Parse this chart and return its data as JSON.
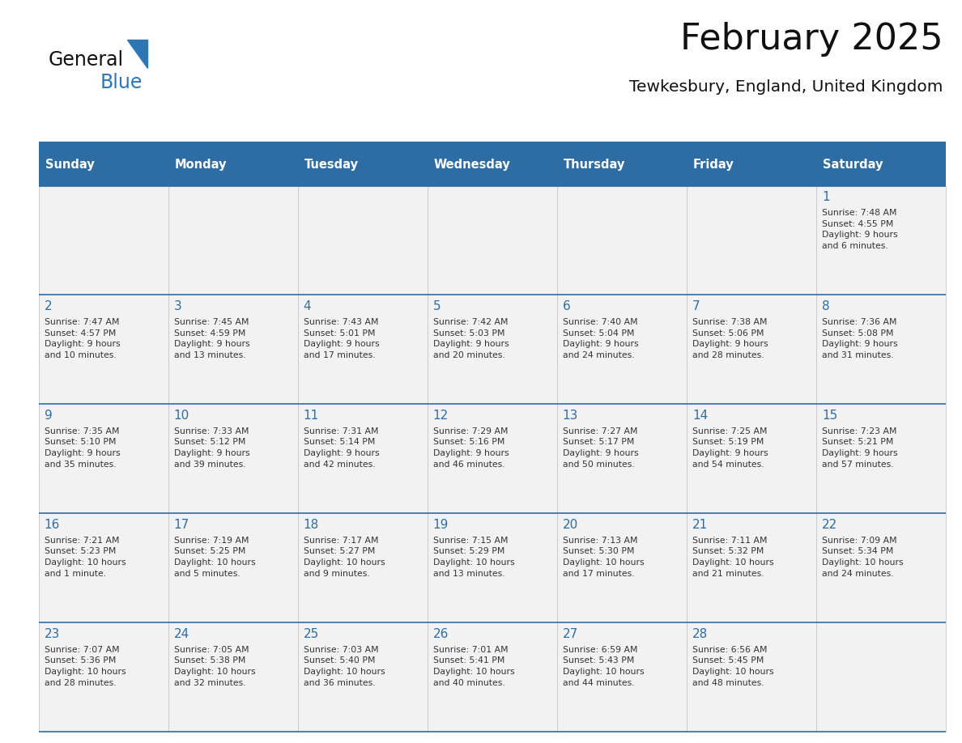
{
  "title": "February 2025",
  "subtitle": "Tewkesbury, England, United Kingdom",
  "header_color": "#2E6DA4",
  "header_text_color": "#FFFFFF",
  "day_names": [
    "Sunday",
    "Monday",
    "Tuesday",
    "Wednesday",
    "Thursday",
    "Friday",
    "Saturday"
  ],
  "background_color": "#FFFFFF",
  "cell_bg_color": "#F2F2F2",
  "grid_color": "#2E6DA4",
  "day_number_color": "#2E6DA4",
  "text_color": "#333333",
  "logo_color1": "#111111",
  "logo_color2": "#2E75B6",
  "weeks": [
    [
      {
        "day": null,
        "info": ""
      },
      {
        "day": null,
        "info": ""
      },
      {
        "day": null,
        "info": ""
      },
      {
        "day": null,
        "info": ""
      },
      {
        "day": null,
        "info": ""
      },
      {
        "day": null,
        "info": ""
      },
      {
        "day": 1,
        "info": "Sunrise: 7:48 AM\nSunset: 4:55 PM\nDaylight: 9 hours\nand 6 minutes."
      }
    ],
    [
      {
        "day": 2,
        "info": "Sunrise: 7:47 AM\nSunset: 4:57 PM\nDaylight: 9 hours\nand 10 minutes."
      },
      {
        "day": 3,
        "info": "Sunrise: 7:45 AM\nSunset: 4:59 PM\nDaylight: 9 hours\nand 13 minutes."
      },
      {
        "day": 4,
        "info": "Sunrise: 7:43 AM\nSunset: 5:01 PM\nDaylight: 9 hours\nand 17 minutes."
      },
      {
        "day": 5,
        "info": "Sunrise: 7:42 AM\nSunset: 5:03 PM\nDaylight: 9 hours\nand 20 minutes."
      },
      {
        "day": 6,
        "info": "Sunrise: 7:40 AM\nSunset: 5:04 PM\nDaylight: 9 hours\nand 24 minutes."
      },
      {
        "day": 7,
        "info": "Sunrise: 7:38 AM\nSunset: 5:06 PM\nDaylight: 9 hours\nand 28 minutes."
      },
      {
        "day": 8,
        "info": "Sunrise: 7:36 AM\nSunset: 5:08 PM\nDaylight: 9 hours\nand 31 minutes."
      }
    ],
    [
      {
        "day": 9,
        "info": "Sunrise: 7:35 AM\nSunset: 5:10 PM\nDaylight: 9 hours\nand 35 minutes."
      },
      {
        "day": 10,
        "info": "Sunrise: 7:33 AM\nSunset: 5:12 PM\nDaylight: 9 hours\nand 39 minutes."
      },
      {
        "day": 11,
        "info": "Sunrise: 7:31 AM\nSunset: 5:14 PM\nDaylight: 9 hours\nand 42 minutes."
      },
      {
        "day": 12,
        "info": "Sunrise: 7:29 AM\nSunset: 5:16 PM\nDaylight: 9 hours\nand 46 minutes."
      },
      {
        "day": 13,
        "info": "Sunrise: 7:27 AM\nSunset: 5:17 PM\nDaylight: 9 hours\nand 50 minutes."
      },
      {
        "day": 14,
        "info": "Sunrise: 7:25 AM\nSunset: 5:19 PM\nDaylight: 9 hours\nand 54 minutes."
      },
      {
        "day": 15,
        "info": "Sunrise: 7:23 AM\nSunset: 5:21 PM\nDaylight: 9 hours\nand 57 minutes."
      }
    ],
    [
      {
        "day": 16,
        "info": "Sunrise: 7:21 AM\nSunset: 5:23 PM\nDaylight: 10 hours\nand 1 minute."
      },
      {
        "day": 17,
        "info": "Sunrise: 7:19 AM\nSunset: 5:25 PM\nDaylight: 10 hours\nand 5 minutes."
      },
      {
        "day": 18,
        "info": "Sunrise: 7:17 AM\nSunset: 5:27 PM\nDaylight: 10 hours\nand 9 minutes."
      },
      {
        "day": 19,
        "info": "Sunrise: 7:15 AM\nSunset: 5:29 PM\nDaylight: 10 hours\nand 13 minutes."
      },
      {
        "day": 20,
        "info": "Sunrise: 7:13 AM\nSunset: 5:30 PM\nDaylight: 10 hours\nand 17 minutes."
      },
      {
        "day": 21,
        "info": "Sunrise: 7:11 AM\nSunset: 5:32 PM\nDaylight: 10 hours\nand 21 minutes."
      },
      {
        "day": 22,
        "info": "Sunrise: 7:09 AM\nSunset: 5:34 PM\nDaylight: 10 hours\nand 24 minutes."
      }
    ],
    [
      {
        "day": 23,
        "info": "Sunrise: 7:07 AM\nSunset: 5:36 PM\nDaylight: 10 hours\nand 28 minutes."
      },
      {
        "day": 24,
        "info": "Sunrise: 7:05 AM\nSunset: 5:38 PM\nDaylight: 10 hours\nand 32 minutes."
      },
      {
        "day": 25,
        "info": "Sunrise: 7:03 AM\nSunset: 5:40 PM\nDaylight: 10 hours\nand 36 minutes."
      },
      {
        "day": 26,
        "info": "Sunrise: 7:01 AM\nSunset: 5:41 PM\nDaylight: 10 hours\nand 40 minutes."
      },
      {
        "day": 27,
        "info": "Sunrise: 6:59 AM\nSunset: 5:43 PM\nDaylight: 10 hours\nand 44 minutes."
      },
      {
        "day": 28,
        "info": "Sunrise: 6:56 AM\nSunset: 5:45 PM\nDaylight: 10 hours\nand 48 minutes."
      },
      {
        "day": null,
        "info": ""
      }
    ]
  ]
}
